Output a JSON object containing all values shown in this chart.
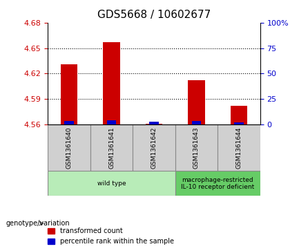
{
  "title": "GDS5668 / 10602677",
  "samples": [
    "GSM1361640",
    "GSM1361641",
    "GSM1361642",
    "GSM1361643",
    "GSM1361644"
  ],
  "transformed_counts": [
    4.631,
    4.657,
    4.561,
    4.612,
    4.582
  ],
  "percentile_ranks": [
    3.5,
    4.0,
    2.5,
    3.5,
    2.0
  ],
  "baseline": 4.56,
  "ylim_left": [
    4.56,
    4.68
  ],
  "yticks_left": [
    4.56,
    4.59,
    4.62,
    4.65,
    4.68
  ],
  "ylim_right": [
    0,
    100
  ],
  "yticks_right": [
    0,
    25,
    50,
    75,
    100
  ],
  "bar_color_red": "#cc0000",
  "bar_color_blue": "#0000cc",
  "bar_width": 0.4,
  "percentile_bar_width": 0.22,
  "groups": [
    {
      "label": "wild type",
      "samples": [
        0,
        1,
        2
      ],
      "color": "#b8ecb8"
    },
    {
      "label": "macrophage-restricted\nIL-10 receptor deficient",
      "samples": [
        3,
        4
      ],
      "color": "#66cc66"
    }
  ],
  "genotype_label": "genotype/variation",
  "legend_red": "transformed count",
  "legend_blue": "percentile rank within the sample",
  "left_tick_color": "#cc0000",
  "right_tick_color": "#0000cc",
  "plot_bg_color": "#ffffff",
  "sample_box_color": "#d0d0d0"
}
